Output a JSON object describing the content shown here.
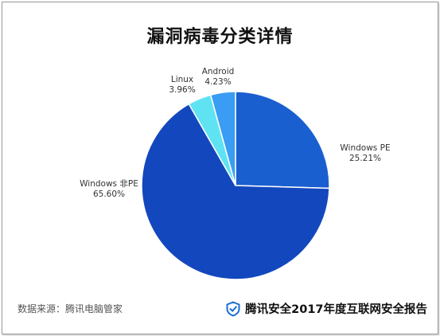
{
  "chart_data": {
    "type": "pie",
    "title": "漏洞病毒分类详情",
    "slices": [
      {
        "name": "Windows PE",
        "value": 25.21,
        "label": "25.21%",
        "color": "#1a5fd0"
      },
      {
        "name": "Windows 非PE",
        "value": 65.6,
        "label": "65.60%",
        "color": "#1347bd"
      },
      {
        "name": "Linux",
        "value": 3.96,
        "label": "3.96%",
        "color": "#5fe3f3"
      },
      {
        "name": "Android",
        "value": 4.23,
        "label": "4.23%",
        "color": "#3a9cf2"
      }
    ],
    "start": "12 o'clock, clockwise"
  },
  "footer": {
    "source": "数据来源：腾讯电脑管家",
    "brand": "腾讯安全2017年度互联网安全报告",
    "brand_icon": "shield-icon",
    "brand_color": "#1a6fd6"
  }
}
